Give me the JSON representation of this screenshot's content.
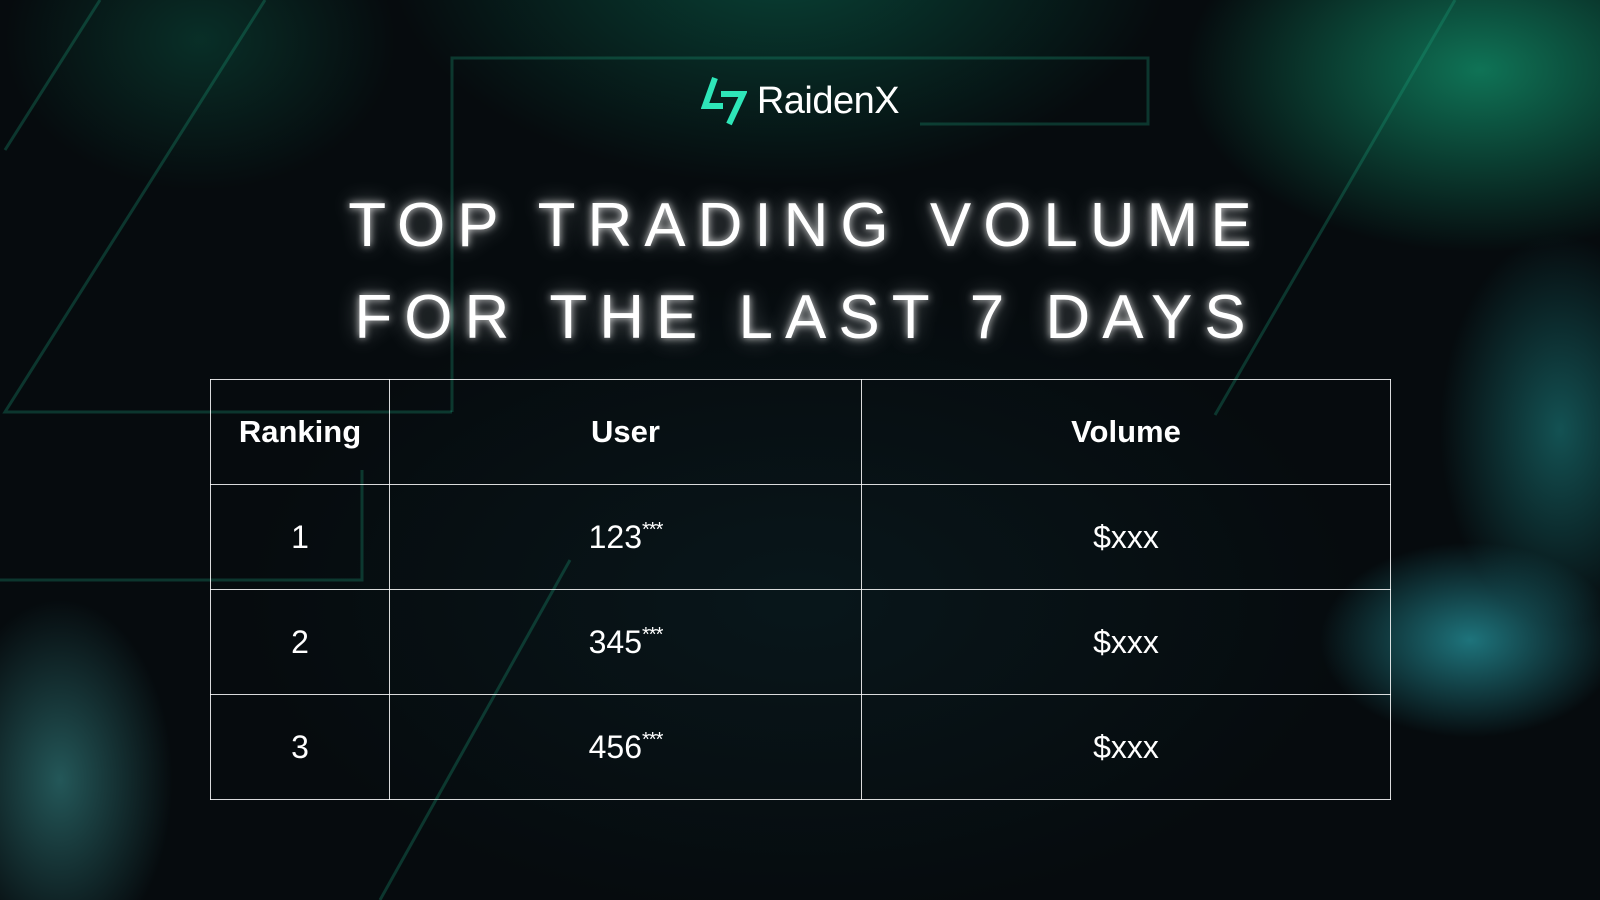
{
  "brand": {
    "name": "RaidenX",
    "logo_icon": "raidenx-logo-icon",
    "accent_color": "#2ee6b8"
  },
  "title": {
    "line1": "TOP TRADING VOLUME",
    "line2": "FOR THE LAST 7 DAYS"
  },
  "table": {
    "headers": {
      "ranking": "Ranking",
      "user": "User",
      "volume": "Volume"
    },
    "rows": [
      {
        "rank": "1",
        "user": "123",
        "user_mask": "***",
        "volume": "$xxx"
      },
      {
        "rank": "2",
        "user": "345",
        "user_mask": "***",
        "volume": "$xxx"
      },
      {
        "rank": "3",
        "user": "456",
        "user_mask": "***",
        "volume": "$xxx"
      }
    ]
  },
  "colors": {
    "background": "#060b0e",
    "glow_green": "#12966e",
    "glow_teal": "#28a0aa"
  }
}
